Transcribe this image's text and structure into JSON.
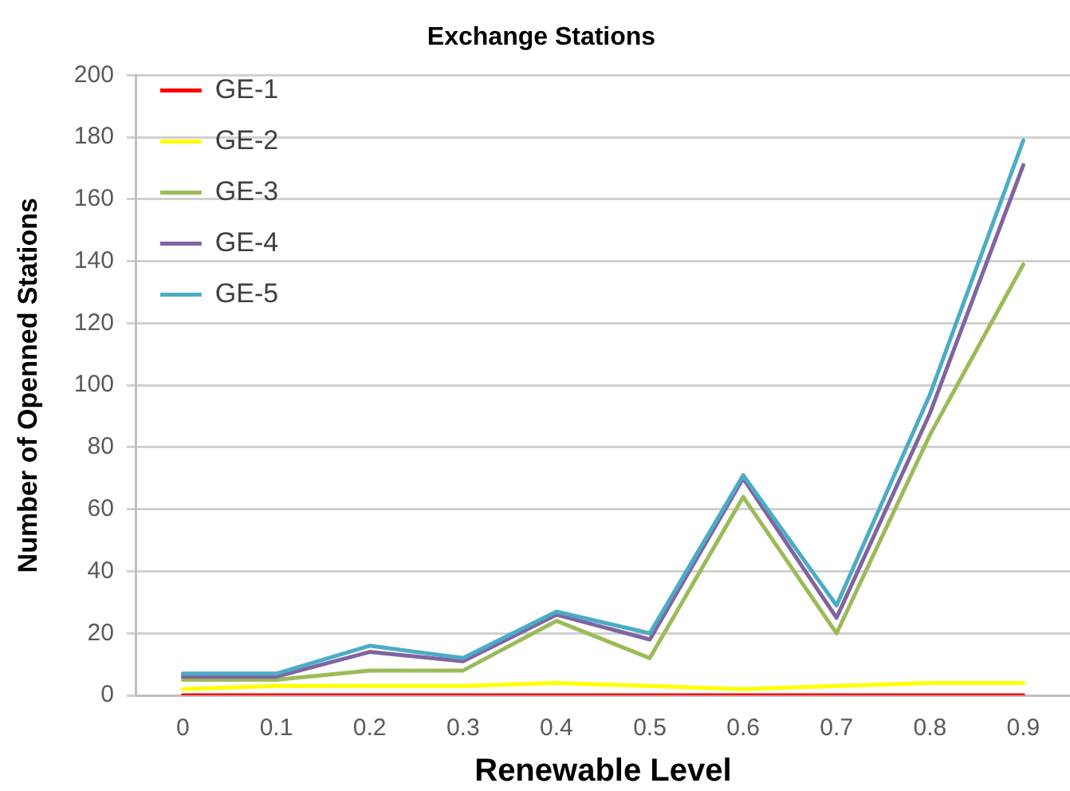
{
  "chart_data": {
    "type": "line",
    "title": "Exchange Stations",
    "xlabel": "Renewable Level",
    "ylabel": "Number of Openned Stations",
    "categories": [
      "0",
      "0.1",
      "0.2",
      "0.3",
      "0.4",
      "0.5",
      "0.6",
      "0.7",
      "0.8",
      "0.9"
    ],
    "series": [
      {
        "name": "GE-1",
        "color": "#ff0000",
        "values": [
          0,
          0,
          0,
          0,
          0,
          0,
          0,
          0,
          0,
          0
        ]
      },
      {
        "name": "GE-2",
        "color": "#ffff00",
        "values": [
          2,
          3,
          3,
          3,
          4,
          3,
          2,
          3,
          4,
          4
        ]
      },
      {
        "name": "GE-3",
        "color": "#9bbb59",
        "values": [
          5,
          5,
          8,
          8,
          24,
          12,
          64,
          20,
          84,
          139
        ]
      },
      {
        "name": "GE-4",
        "color": "#8064a2",
        "values": [
          6,
          6,
          14,
          11,
          26,
          18,
          70,
          25,
          91,
          171
        ]
      },
      {
        "name": "GE-5",
        "color": "#4bacc6",
        "values": [
          7,
          7,
          16,
          12,
          27,
          20,
          71,
          29,
          97,
          179
        ]
      }
    ],
    "ylim": [
      0,
      200
    ],
    "yticks": [
      0,
      20,
      40,
      60,
      80,
      100,
      120,
      140,
      160,
      180,
      200
    ],
    "grid": "y",
    "legend": "top left"
  }
}
